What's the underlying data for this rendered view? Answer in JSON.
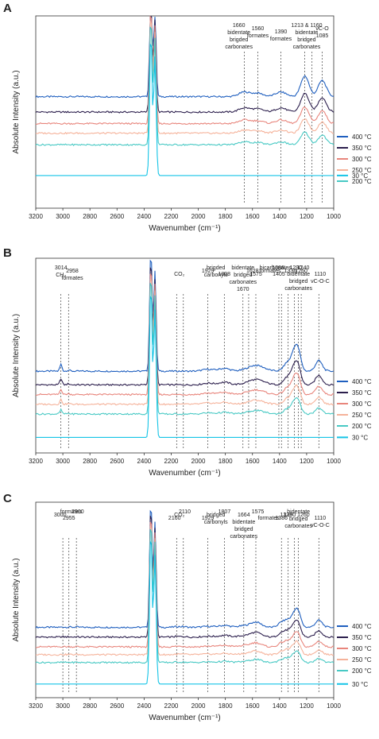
{
  "chart_data": [
    {
      "type": "line",
      "panel_label": "A",
      "xlabel": "Wavenumber (cm⁻¹)",
      "ylabel": "Absolute Intensity (a.u.)",
      "xlim": [
        3200,
        1000
      ],
      "x_ticks": [
        "3200",
        "3000",
        "2800",
        "2600",
        "2400",
        "2200",
        "2000",
        "1800",
        "1600",
        "1400",
        "1200",
        "1000"
      ],
      "legend_position": "right",
      "series": [
        {
          "name": "400 °C",
          "color": "#1f5fbf",
          "offset": 0.58
        },
        {
          "name": "350 °C",
          "color": "#2c1f4d",
          "offset": 0.5
        },
        {
          "name": "300 °C",
          "color": "#e8857c",
          "offset": 0.44
        },
        {
          "name": "250 °C",
          "color": "#f5b29a",
          "offset": 0.39
        },
        {
          "name": "200 °C",
          "color": "#48c9c4",
          "offset": 0.33
        },
        {
          "name": "30 °C",
          "color": "#14c4e6",
          "offset": 0.17
        }
      ],
      "co2_peak": {
        "x": 2350,
        "height": 0.98
      },
      "bands": [
        {
          "x": 1085,
          "height": 0.7,
          "width": 30
        },
        {
          "x": 1213,
          "height": 0.9,
          "width": 30
        },
        {
          "x": 1390,
          "height": 0.2,
          "width": 40
        },
        {
          "x": 1560,
          "height": 0.15,
          "width": 40
        },
        {
          "x": 1660,
          "height": 0.2,
          "width": 40
        }
      ],
      "annotations": [
        {
          "lines": [
            "1660",
            "bidentate",
            "brigded",
            "carbonates"
          ],
          "x": 1660,
          "text_x": 1700
        },
        {
          "lines": [
            "1560",
            "formates"
          ],
          "x": 1560,
          "text_x": 1560
        },
        {
          "lines": [
            "1390",
            "formates"
          ],
          "x": 1390,
          "text_x": 1390
        },
        {
          "lines": [
            "1213 & 1160",
            "bidentate",
            "bridged",
            "carbonates"
          ],
          "x": 1213,
          "text_x": 1200
        },
        {
          "lines": [
            "νC-O",
            "1085"
          ],
          "x": 1085,
          "text_x": 1085
        }
      ],
      "marker_lines": [
        1660,
        1560,
        1390,
        1213,
        1160,
        1085
      ]
    },
    {
      "type": "line",
      "panel_label": "B",
      "xlabel": "Wavenumber (cm⁻¹)",
      "ylabel": "Absolute Intensity (a.u.)",
      "xlim": [
        3200,
        1000
      ],
      "x_ticks": [
        "3200",
        "3000",
        "2800",
        "2600",
        "2400",
        "2200",
        "2000",
        "1800",
        "1600",
        "1400",
        "1200",
        "1000"
      ],
      "legend_position": "right",
      "series": [
        {
          "name": "400 °C",
          "color": "#1f5fbf",
          "offset": 0.42
        },
        {
          "name": "350 °C",
          "color": "#2c1f4d",
          "offset": 0.35
        },
        {
          "name": "300 °C",
          "color": "#e8857c",
          "offset": 0.3
        },
        {
          "name": "250 °C",
          "color": "#f5b29a",
          "offset": 0.25
        },
        {
          "name": "200 °C",
          "color": "#48c9c4",
          "offset": 0.2
        },
        {
          "name": "30 °C",
          "color": "#14c4e6",
          "offset": 0.08
        }
      ],
      "co2_peak": {
        "x": 2350,
        "height": 0.98
      },
      "bands": [
        {
          "x": 3014,
          "height": 0.3,
          "width": 8
        },
        {
          "x": 2958,
          "height": 0.05,
          "width": 10
        },
        {
          "x": 1929,
          "height": 0.08,
          "width": 40
        },
        {
          "x": 1808,
          "height": 0.12,
          "width": 40
        },
        {
          "x": 1575,
          "height": 0.25,
          "width": 60
        },
        {
          "x": 1336,
          "height": 0.4,
          "width": 30
        },
        {
          "x": 1290,
          "height": 0.7,
          "width": 20
        },
        {
          "x": 1260,
          "height": 0.75,
          "width": 20
        },
        {
          "x": 1110,
          "height": 0.45,
          "width": 25
        }
      ],
      "annotations": [
        {
          "lines": [
            "3014",
            "CH₄"
          ],
          "x": 3014,
          "text_x": 3014
        },
        {
          "lines": [
            "2958",
            "formates"
          ],
          "x": 2958,
          "text_x": 2930
        },
        {
          "lines": [
            "CO₂"
          ],
          "x": 2140,
          "text_x": 2140
        },
        {
          "lines": [
            "brigded",
            "carbonyls"
          ],
          "x": 1870,
          "text_x": 1870
        },
        {
          "lines": [
            "1929"
          ],
          "x": 1929,
          "text_x": 1929
        },
        {
          "lines": [
            "1808"
          ],
          "x": 1808,
          "text_x": 1808
        },
        {
          "lines": [
            "bidentate",
            "bridged",
            "carbonates",
            "1670"
          ],
          "x": 1670,
          "text_x": 1670
        },
        {
          "lines": [
            "formates"
          ],
          "x": 1480,
          "text_x": 1470
        },
        {
          "lines": [
            "1575"
          ],
          "x": 1575,
          "text_x": 1575
        },
        {
          "lines": [
            "1386"
          ],
          "x": 1386,
          "text_x": 1410
        },
        {
          "lines": [
            "1336"
          ],
          "x": 1336,
          "text_x": 1320
        },
        {
          "lines": [
            "bidentate",
            "bridged",
            "carbonates"
          ],
          "x": 1290,
          "text_x": 1260
        },
        {
          "lines": [
            "1290"
          ],
          "x": 1290,
          "text_x": 1280
        },
        {
          "lines": [
            "1260"
          ],
          "x": 1260,
          "text_x": 1240
        },
        {
          "lines": [
            "1110",
            "νC-O-C"
          ],
          "x": 1110,
          "text_x": 1100
        },
        {
          "lines": [
            "bicarbonates"
          ],
          "x": 1430,
          "text_x": 1430
        },
        {
          "lines": [
            "1628"
          ],
          "x": 1628,
          "text_x": 1600
        },
        {
          "lines": [
            "1405"
          ],
          "x": 1405,
          "text_x": 1405
        },
        {
          "lines": [
            "1240"
          ],
          "x": 1240,
          "text_x": 1225
        }
      ],
      "marker_lines": [
        3014,
        2958,
        2160,
        2110,
        1929,
        1808,
        1670,
        1575,
        1386,
        1336,
        1290,
        1260,
        1110,
        1628,
        1405,
        1240
      ]
    },
    {
      "type": "line",
      "panel_label": "C",
      "xlabel": "Wavenumber (cm⁻¹)",
      "ylabel": "Absolute Intensity (a.u.)",
      "xlim": [
        3200,
        1000
      ],
      "x_ticks": [
        "3200",
        "3000",
        "2800",
        "2600",
        "2400",
        "2200",
        "2000",
        "1800",
        "1600",
        "1400",
        "1200",
        "1000"
      ],
      "legend_position": "right",
      "series": [
        {
          "name": "400 °C",
          "color": "#1f5fbf",
          "offset": 0.36
        },
        {
          "name": "350 °C",
          "color": "#2c1f4d",
          "offset": 0.31
        },
        {
          "name": "300 °C",
          "color": "#e8857c",
          "offset": 0.26
        },
        {
          "name": "250 °C",
          "color": "#f5b29a",
          "offset": 0.22
        },
        {
          "name": "200 °C",
          "color": "#48c9c4",
          "offset": 0.18
        },
        {
          "name": "30 °C",
          "color": "#14c4e6",
          "offset": 0.07
        }
      ],
      "co2_peak": {
        "x": 2350,
        "height": 0.98
      },
      "bands": [
        {
          "x": 3000,
          "height": 0.02,
          "width": 10
        },
        {
          "x": 2955,
          "height": 0.02,
          "width": 10
        },
        {
          "x": 2900,
          "height": 0.02,
          "width": 10
        },
        {
          "x": 2160,
          "height": 0.03,
          "width": 20
        },
        {
          "x": 2110,
          "height": 0.03,
          "width": 20
        },
        {
          "x": 1929,
          "height": 0.04,
          "width": 40
        },
        {
          "x": 1807,
          "height": 0.08,
          "width": 40
        },
        {
          "x": 1664,
          "height": 0.06,
          "width": 40
        },
        {
          "x": 1575,
          "height": 0.22,
          "width": 40
        },
        {
          "x": 1386,
          "height": 0.2,
          "width": 25
        },
        {
          "x": 1336,
          "height": 0.3,
          "width": 25
        },
        {
          "x": 1290,
          "height": 0.5,
          "width": 20
        },
        {
          "x": 1260,
          "height": 0.55,
          "width": 20
        },
        {
          "x": 1110,
          "height": 0.3,
          "width": 25
        }
      ],
      "annotations": [
        {
          "lines": [
            "formates"
          ],
          "x": 2955,
          "text_x": 2940
        },
        {
          "lines": [
            "3000"
          ],
          "x": 3000,
          "text_x": 3020
        },
        {
          "lines": [
            "2955"
          ],
          "x": 2955,
          "text_x": 2955
        },
        {
          "lines": [
            "2900"
          ],
          "x": 2900,
          "text_x": 2890
        },
        {
          "lines": [
            "CO₂"
          ],
          "x": 2140,
          "text_x": 2140
        },
        {
          "lines": [
            "2160"
          ],
          "x": 2160,
          "text_x": 2175
        },
        {
          "lines": [
            "2110"
          ],
          "x": 2110,
          "text_x": 2100
        },
        {
          "lines": [
            "bridged",
            "carbonyls"
          ],
          "x": 1870,
          "text_x": 1870
        },
        {
          "lines": [
            "1929"
          ],
          "x": 1929,
          "text_x": 1929
        },
        {
          "lines": [
            "1807"
          ],
          "x": 1807,
          "text_x": 1807
        },
        {
          "lines": [
            "1664",
            "bidentate",
            "bridged",
            "carbonates"
          ],
          "x": 1664,
          "text_x": 1664
        },
        {
          "lines": [
            "formates"
          ],
          "x": 1480,
          "text_x": 1480
        },
        {
          "lines": [
            "1575"
          ],
          "x": 1575,
          "text_x": 1560
        },
        {
          "lines": [
            "1336"
          ],
          "x": 1336,
          "text_x": 1350
        },
        {
          "lines": [
            "1386"
          ],
          "x": 1386,
          "text_x": 1386
        },
        {
          "lines": [
            "bidentate",
            "bridged",
            "carbonates"
          ],
          "x": 1275,
          "text_x": 1260
        },
        {
          "lines": [
            "1290 1260"
          ],
          "x": 1275,
          "text_x": 1275
        },
        {
          "lines": [
            "1110",
            "νC-O-C"
          ],
          "x": 1110,
          "text_x": 1100
        }
      ],
      "marker_lines": [
        3000,
        2955,
        2900,
        2160,
        2110,
        1929,
        1807,
        1664,
        1575,
        1386,
        1336,
        1290,
        1260,
        1110
      ]
    }
  ]
}
